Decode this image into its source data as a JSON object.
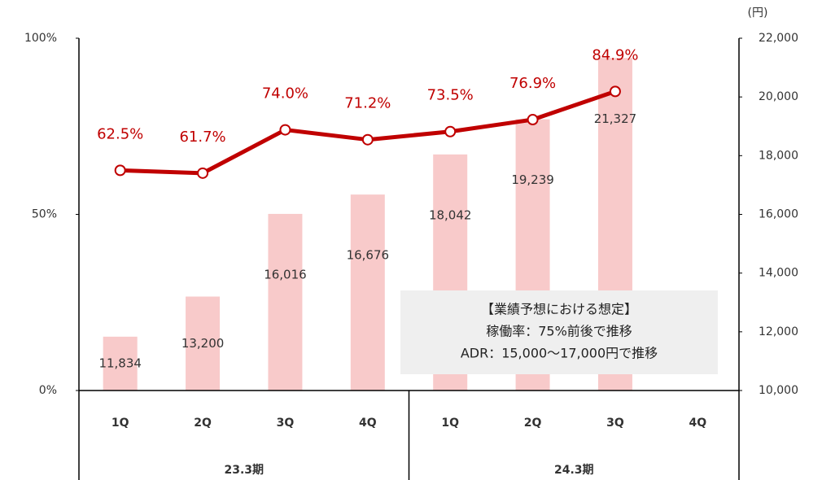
{
  "chart_data": {
    "type": "combo",
    "groups": [
      {
        "name": "23.3期",
        "categories": [
          "1Q",
          "2Q",
          "3Q",
          "4Q"
        ]
      },
      {
        "name": "24.3期",
        "categories": [
          "1Q",
          "2Q",
          "3Q",
          "4Q"
        ]
      }
    ],
    "series": [
      {
        "type": "bar",
        "axis": "y2",
        "color": "#f8caca",
        "values": [
          11834,
          13200,
          16016,
          16676,
          18042,
          19239,
          21327,
          null
        ],
        "value_labels": [
          "11,834",
          "13,200",
          "16,016",
          "16,676",
          "18,042",
          "19,239",
          "21,327",
          null
        ]
      },
      {
        "type": "line",
        "axis": "y",
        "color": "#c00000",
        "values": [
          62.5,
          61.7,
          74.0,
          71.2,
          73.5,
          76.9,
          84.9,
          null
        ],
        "value_labels": [
          "62.5%",
          "61.7%",
          "74.0%",
          "71.2%",
          "73.5%",
          "76.9%",
          "84.9%",
          null
        ]
      }
    ],
    "ylim": [
      0,
      100
    ],
    "yticks": [
      {
        "value": 0,
        "label": "0%"
      },
      {
        "value": 50,
        "label": "50%"
      },
      {
        "value": 100,
        "label": "100%"
      }
    ],
    "y2lim": [
      10000,
      22000
    ],
    "y2ticks": [
      {
        "value": 10000,
        "label": "10,000"
      },
      {
        "value": 12000,
        "label": "12,000"
      },
      {
        "value": 14000,
        "label": "14,000"
      },
      {
        "value": 16000,
        "label": "16,000"
      },
      {
        "value": 18000,
        "label": "18,000"
      },
      {
        "value": 20000,
        "label": "20,000"
      },
      {
        "value": 22000,
        "label": "22,000"
      }
    ],
    "y2_label": "(円)",
    "annotation": [
      "【業績予想における想定】",
      "稼働率：75%前後で推移",
      "ADR：15,000～17,000円で推移"
    ]
  }
}
